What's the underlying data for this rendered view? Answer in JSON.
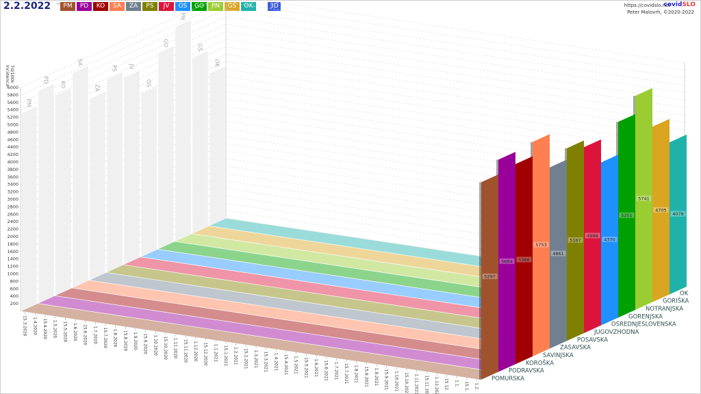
{
  "header": {
    "date": "2.2.2022",
    "weekday": "sre",
    "mode_button": "3D",
    "url": "https://covidslo.net",
    "brand_a": "covid",
    "brand_b": "SLO",
    "author": "Peter Malovrh, ©2020-2022"
  },
  "legend": [
    {
      "code": "PM",
      "color": "#a0522d"
    },
    {
      "code": "PD",
      "color": "#990099"
    },
    {
      "code": "KO",
      "color": "#a00000"
    },
    {
      "code": "SA",
      "color": "#ff7f50"
    },
    {
      "code": "ZA",
      "color": "#708090"
    },
    {
      "code": "PS",
      "color": "#808000"
    },
    {
      "code": "JV",
      "color": "#dc143c"
    },
    {
      "code": "OS",
      "color": "#1e90ff"
    },
    {
      "code": "GO",
      "color": "#00a000"
    },
    {
      "code": "PN",
      "color": "#9acd32"
    },
    {
      "code": "GŠ",
      "color": "#daa520"
    },
    {
      "code": "OK",
      "color": "#20b2aa"
    }
  ],
  "chart_data": {
    "type": "bar",
    "projection": "3d",
    "ylabel": [
      "Incidenca",
      "7d/100k"
    ],
    "ylim": [
      0,
      6000
    ],
    "yticks": [
      200,
      400,
      600,
      800,
      1000,
      1200,
      1400,
      1600,
      1800,
      2000,
      2200,
      2400,
      2600,
      2800,
      3000,
      3200,
      3400,
      3600,
      3800,
      4000,
      4200,
      4400,
      4600,
      4800,
      5000,
      5200,
      5400,
      5600,
      5800,
      6000
    ],
    "xticks": [
      "15.3.2020",
      "1.4.2020",
      "15.4.2020",
      "1.5.2020",
      "15.5.2020",
      "1.6.2020",
      "15.6.2020",
      "1.7.2020",
      "15.7.2020",
      "1.8.2020",
      "15.8.2020",
      "1.9.2020",
      "15.9.2020",
      "1.10.2020",
      "15.10.2020",
      "1.11.2020",
      "15.11.2020",
      "1.12.2020",
      "15.12.2020",
      "1.1.2021",
      "15.1.2021",
      "1.2.2021",
      "15.2.2021",
      "1.3.2021",
      "15.3.2021",
      "1.4.2021",
      "15.4.2021",
      "1.5.2021",
      "15.5.2021",
      "1.6.2021",
      "15.6.2021",
      "1.7.2021",
      "15.7.2021",
      "1.8.2021",
      "15.8.2021",
      "1.9.2021",
      "15.9.2021",
      "1.10.2021",
      "15.10.2021",
      "1.11.2021",
      "15.11.2021",
      "1.12.2021",
      "15.12.",
      "1.1.",
      "15.1.",
      "1.2."
    ],
    "grid": true,
    "categories": [
      "POMURSKA",
      "PODRAVSKA",
      "KOROŠKA",
      "SAVINJSKA",
      "ZASAVSKA",
      "POSAVSKA",
      "JUGOVZHODNA",
      "OSREDNJESLOVENSKA",
      "GORENJSKA",
      "NOTRANJSKA",
      "GORIŠKA",
      "OK"
    ],
    "codes": [
      "PM",
      "PD",
      "KO",
      "SA",
      "ZA",
      "PS",
      "JV",
      "OS",
      "GO",
      "PN",
      "GŠ",
      "OK"
    ],
    "values": [
      5297,
      5694,
      5366,
      5753,
      4861,
      5167,
      4988,
      4370,
      5251,
      5741,
      4705,
      4078
    ]
  }
}
